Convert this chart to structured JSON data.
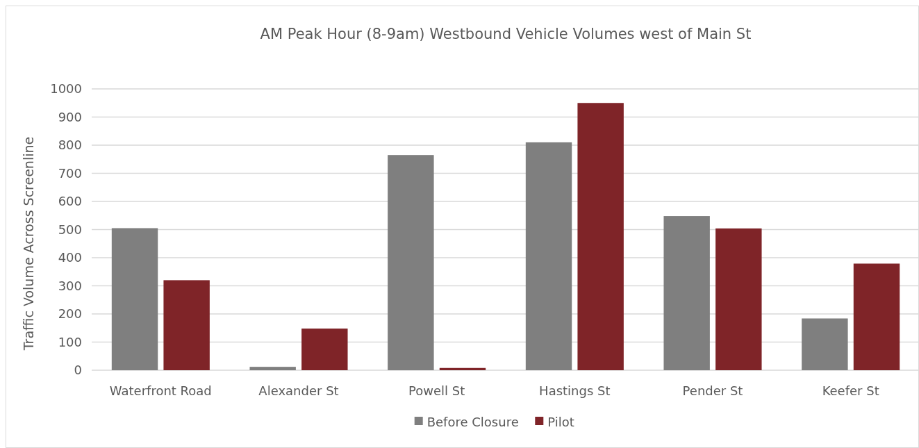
{
  "chart_data": {
    "type": "bar",
    "title": "AM Peak Hour (8-9am) Westbound Vehicle Volumes west of Main St",
    "ylabel": "Traffic Volume Across Screenline",
    "categories": [
      "Waterfront Road",
      "Alexander St",
      "Powell St",
      "Hastings St",
      "Pender St",
      "Keefer St"
    ],
    "series": [
      {
        "name": "Before Closure",
        "color": "#7f7f7f",
        "values": [
          505,
          12,
          765,
          810,
          548,
          184
        ]
      },
      {
        "name": "Pilot",
        "color": "#7f2428",
        "values": [
          320,
          148,
          8,
          950,
          504,
          379
        ]
      }
    ],
    "ylim": [
      0,
      1000
    ],
    "yticks": [
      0,
      100,
      200,
      300,
      400,
      500,
      600,
      700,
      800,
      900,
      1000
    ],
    "grid": "y",
    "legend": "bottom"
  }
}
